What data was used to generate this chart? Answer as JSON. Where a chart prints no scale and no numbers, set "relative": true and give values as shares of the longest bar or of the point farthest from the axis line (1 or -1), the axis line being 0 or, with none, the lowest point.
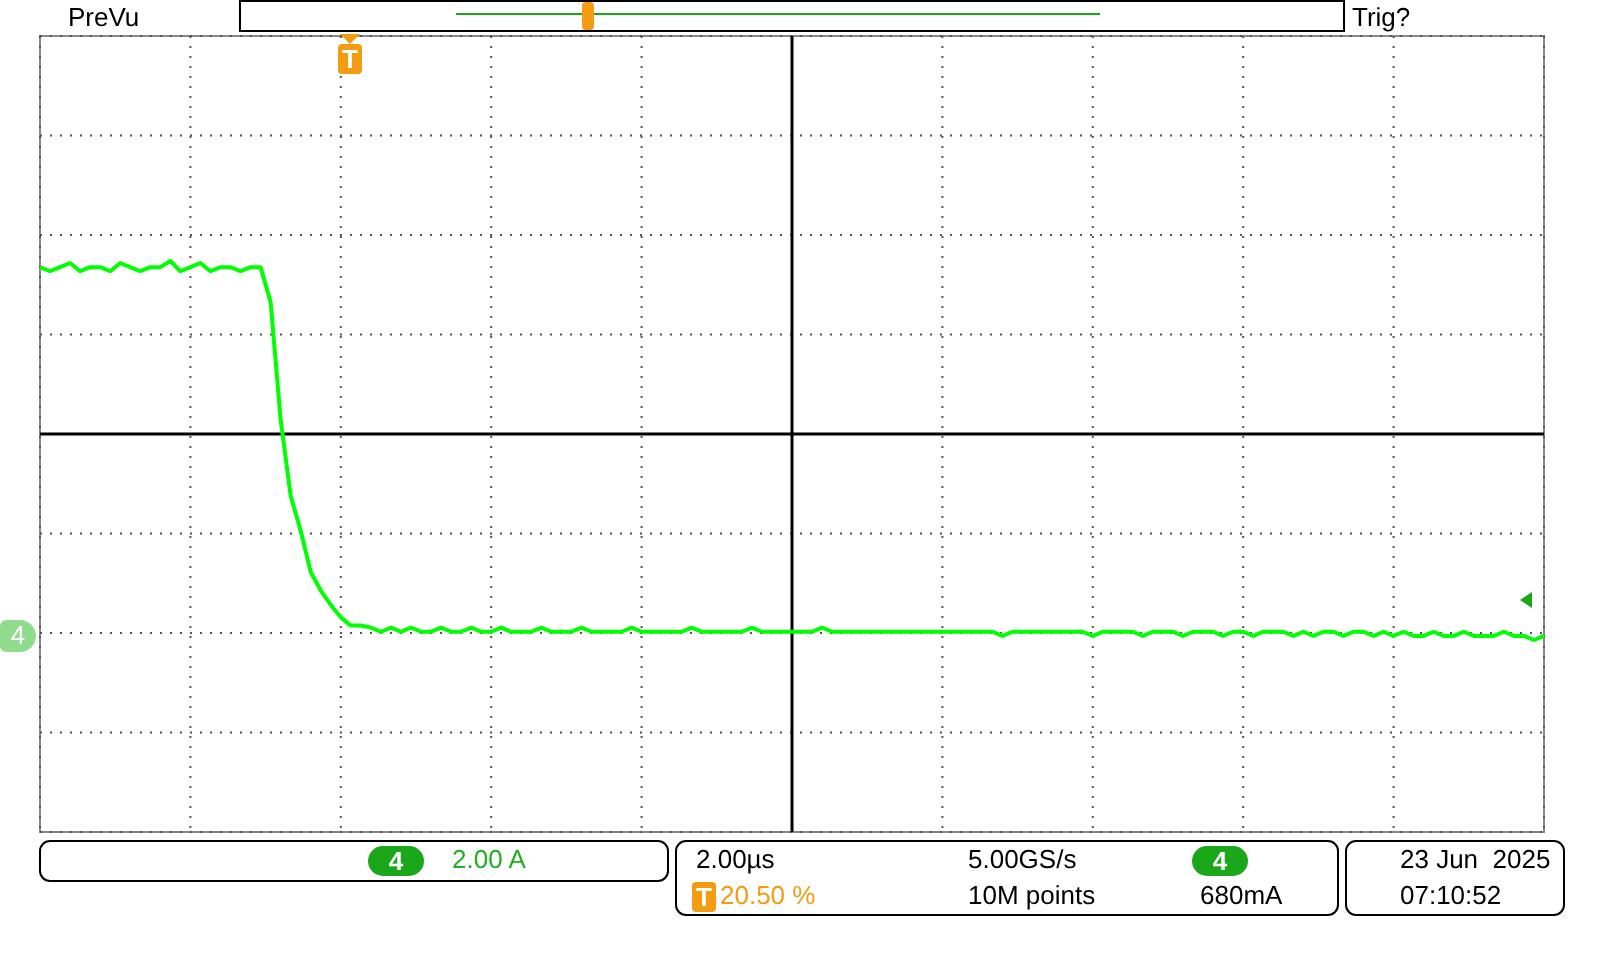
{
  "chart_data": {
    "type": "line",
    "relative": true,
    "grid": true,
    "marker": "none",
    "line_style": "solid",
    "color": "#00ff00",
    "categories": [
      null,
      null,
      null,
      null,
      null,
      null,
      null,
      null,
      null,
      null,
      null,
      null,
      null,
      null,
      null,
      null,
      null,
      null,
      null,
      null,
      null,
      null,
      null,
      null,
      null,
      null,
      null,
      null,
      null,
      null,
      null,
      null,
      null,
      null,
      null,
      null,
      null,
      null,
      null,
      null,
      null,
      null,
      null,
      null,
      null,
      null,
      null,
      null,
      null,
      null,
      null,
      null,
      null,
      null,
      null,
      null,
      null,
      null,
      null,
      null,
      null,
      null,
      null,
      null,
      null,
      null,
      null,
      null,
      null,
      null,
      null,
      null,
      null,
      null,
      null,
      null,
      null,
      null,
      null,
      null,
      null,
      null,
      null,
      null,
      null,
      null,
      null,
      null,
      null,
      null,
      null,
      null,
      null,
      null,
      null,
      null,
      null,
      null,
      null,
      null,
      null,
      null,
      null,
      null,
      null,
      null,
      null,
      null,
      null,
      null,
      null,
      null,
      null,
      null,
      null,
      null,
      null,
      null,
      null,
      null,
      null,
      null,
      null,
      null,
      null,
      null,
      null,
      null,
      null,
      null,
      null,
      null,
      null,
      null,
      null,
      null,
      null,
      null,
      null,
      null,
      null,
      null,
      null,
      null,
      null,
      null,
      null,
      null,
      null,
      null,
      null
    ],
    "values": [
      0.81,
      0.79,
      0.81,
      0.83,
      0.79,
      0.81,
      0.81,
      0.79,
      0.83,
      0.81,
      0.79,
      0.81,
      0.81,
      0.84,
      0.79,
      0.81,
      0.83,
      0.79,
      0.81,
      0.81,
      0.79,
      0.81,
      0.81,
      0.64,
      0.07,
      -0.3,
      -0.47,
      -0.67,
      -0.76,
      -0.83,
      -0.89,
      -0.93,
      -0.93,
      -0.94,
      -0.96,
      -0.94,
      -0.96,
      -0.94,
      -0.96,
      -0.96,
      -0.94,
      -0.96,
      -0.96,
      -0.94,
      -0.96,
      -0.96,
      -0.94,
      -0.96,
      -0.96,
      -0.96,
      -0.94,
      -0.96,
      -0.96,
      -0.96,
      -0.94,
      -0.96,
      -0.96,
      -0.96,
      -0.96,
      -0.94,
      -0.96,
      -0.96,
      -0.96,
      -0.96,
      -0.96,
      -0.94,
      -0.96,
      -0.96,
      -0.96,
      -0.96,
      -0.96,
      -0.94,
      -0.96,
      -0.96,
      -0.96,
      -0.96,
      -0.96,
      -0.96,
      -0.94,
      -0.96,
      -0.96,
      -0.96,
      -0.96,
      -0.96,
      -0.96,
      -0.96,
      -0.96,
      -0.96,
      -0.96,
      -0.96,
      -0.96,
      -0.96,
      -0.96,
      -0.96,
      -0.96,
      -0.96,
      -0.98,
      -0.96,
      -0.96,
      -0.96,
      -0.96,
      -0.96,
      -0.96,
      -0.96,
      -0.96,
      -0.98,
      -0.96,
      -0.96,
      -0.96,
      -0.96,
      -0.98,
      -0.96,
      -0.96,
      -0.96,
      -0.98,
      -0.96,
      -0.96,
      -0.96,
      -0.98,
      -0.96,
      -0.96,
      -0.98,
      -0.96,
      -0.96,
      -0.96,
      -0.98,
      -0.96,
      -0.98,
      -0.96,
      -0.96,
      -0.98,
      -0.96,
      -0.96,
      -0.98,
      -0.96,
      -0.98,
      -0.96,
      -0.98,
      -0.98,
      -0.96,
      -0.98,
      -0.98,
      -0.96,
      -0.98,
      -0.98,
      -0.98,
      -0.96,
      -0.98,
      -0.98,
      -1,
      -0.98
    ],
    "annotations": [
      "PreVu",
      "Trig?",
      "T",
      "4",
      "4",
      "2.00 A",
      "2.00µs",
      "T",
      "20.50 %",
      "5.00GS/s",
      "10M points",
      "4",
      "680mA",
      "23 Jun  2025",
      "07:10:52"
    ]
  }
}
